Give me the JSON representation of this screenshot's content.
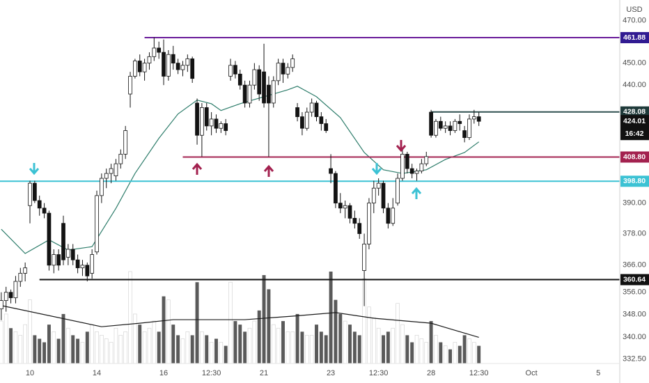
{
  "chart_data": {
    "type": "candlestick",
    "currency": "USD",
    "log_scale": true,
    "ylim": [
      331,
      480
    ],
    "yticks": [
      {
        "value": 470,
        "label": "470.00"
      },
      {
        "value": 450,
        "label": "450.00"
      },
      {
        "value": 440,
        "label": "440.00"
      },
      {
        "value": 390,
        "label": "390.00"
      },
      {
        "value": 378,
        "label": "378.00"
      },
      {
        "value": 366,
        "label": "366.00"
      },
      {
        "value": 356,
        "label": "356.00"
      },
      {
        "value": 348,
        "label": "348.00"
      },
      {
        "value": 340,
        "label": "340.00"
      },
      {
        "value": 332.5,
        "label": "332.50"
      }
    ],
    "xlim": [
      -0.27,
      129.5
    ],
    "xticks": [
      {
        "value": 6,
        "label": "10"
      },
      {
        "value": 20,
        "label": "14"
      },
      {
        "value": 34,
        "label": "16"
      },
      {
        "value": 44,
        "label": "12:30"
      },
      {
        "value": 55,
        "label": "21"
      },
      {
        "value": 69,
        "label": "23"
      },
      {
        "value": 79,
        "label": "12:30"
      },
      {
        "value": 90,
        "label": "28"
      },
      {
        "value": 100,
        "label": "12:30"
      },
      {
        "value": 111,
        "label": "Oct"
      },
      {
        "value": 125,
        "label": "5"
      }
    ],
    "up_color": "#ffffff",
    "down_color": "#131313",
    "candles": {
      "x": [
        0,
        1,
        2,
        3,
        4,
        5,
        6,
        7,
        8,
        9,
        10,
        11,
        12,
        13,
        14,
        15,
        16,
        17,
        18,
        19,
        20,
        21,
        22,
        23,
        24,
        25,
        26,
        27,
        28,
        29,
        30,
        31,
        32,
        33,
        34,
        35,
        36,
        37,
        38,
        39,
        40,
        41,
        42,
        43,
        44,
        45,
        46,
        47,
        48,
        49,
        50,
        51,
        52,
        53,
        54,
        55,
        56,
        57,
        58,
        59,
        60,
        61,
        62,
        63,
        64,
        65,
        66,
        67,
        68,
        69,
        70,
        71,
        72,
        73,
        74,
        75,
        76,
        77,
        78,
        79,
        80,
        81,
        82,
        83,
        84,
        85,
        86,
        87,
        88,
        89,
        90,
        91,
        92,
        93,
        94,
        95,
        96,
        97,
        98,
        99,
        100
      ],
      "open": [
        350,
        353,
        356,
        354,
        360,
        363,
        389,
        398,
        391,
        388,
        386,
        366,
        370,
        382,
        369,
        372,
        368,
        365,
        366,
        363,
        371,
        393,
        400,
        402,
        401,
        406,
        410,
        436,
        444,
        451,
        446,
        450,
        453,
        457,
        455,
        444,
        454,
        450,
        447,
        449,
        452,
        432,
        418,
        430,
        422,
        425,
        421,
        423,
        444,
        449,
        445,
        440,
        432,
        440,
        447,
        446,
        440,
        432,
        442,
        450,
        445,
        448,
        430,
        426,
        421,
        428,
        432,
        426,
        423,
        404,
        402,
        390,
        388,
        389,
        384,
        382,
        364,
        374,
        390,
        396,
        398,
        388,
        382,
        390,
        400,
        410,
        404,
        402,
        403,
        406,
        428,
        418,
        424,
        421,
        422,
        420,
        424,
        420,
        417,
        425,
        426
      ],
      "high": [
        356,
        358,
        357,
        362,
        365,
        367,
        399,
        399,
        393,
        390,
        387,
        372,
        372,
        385,
        374,
        374,
        370,
        368,
        367,
        372,
        395,
        402,
        404,
        406,
        408,
        412,
        422,
        446,
        452,
        454,
        452,
        455,
        462,
        460,
        461,
        456,
        458,
        452,
        451,
        454,
        453,
        434,
        432,
        432,
        428,
        427,
        424,
        425,
        452,
        451,
        447,
        442,
        442,
        450,
        449,
        459,
        444,
        444,
        452,
        452,
        450,
        454,
        432,
        428,
        430,
        434,
        433,
        428,
        425,
        410,
        403,
        394,
        391,
        390,
        387,
        384,
        378,
        392,
        399,
        400,
        399,
        390,
        392,
        402,
        412,
        411,
        406,
        404,
        408,
        411,
        429,
        425,
        426,
        424,
        424,
        425,
        427,
        422,
        427,
        429,
        428
      ],
      "low": [
        346,
        349,
        352,
        352,
        358,
        360,
        382,
        390,
        385,
        384,
        364,
        363,
        364,
        366,
        366,
        366,
        363,
        362,
        360,
        361,
        370,
        390,
        396,
        398,
        399,
        404,
        408,
        430,
        443,
        444,
        442,
        447,
        451,
        452,
        440,
        442,
        447,
        445,
        444,
        446,
        441,
        414,
        409,
        420,
        418,
        419,
        419,
        418,
        442,
        443,
        438,
        430,
        430,
        438,
        433,
        430,
        409,
        430,
        440,
        441,
        443,
        446,
        424,
        418,
        420,
        426,
        424,
        420,
        419,
        398,
        388,
        386,
        384,
        382,
        380,
        376,
        351,
        372,
        386,
        393,
        386,
        380,
        381,
        389,
        399,
        402,
        400,
        399,
        402,
        405,
        417,
        417,
        420,
        419,
        418,
        419,
        420,
        415,
        416,
        423,
        422
      ],
      "close": [
        353,
        356,
        354,
        360,
        363,
        365,
        398,
        391,
        388,
        386,
        366,
        370,
        366,
        368,
        372,
        368,
        365,
        366,
        362,
        370,
        393,
        400,
        402,
        404,
        406,
        410,
        420,
        444,
        451,
        446,
        450,
        453,
        457,
        455,
        444,
        454,
        450,
        447,
        449,
        452,
        443,
        418,
        430,
        422,
        425,
        421,
        423,
        420,
        449,
        445,
        440,
        432,
        440,
        447,
        436,
        432,
        432,
        442,
        450,
        445,
        448,
        452,
        426,
        421,
        428,
        432,
        426,
        423,
        420,
        402,
        390,
        388,
        389,
        384,
        382,
        378,
        374,
        390,
        396,
        398,
        388,
        382,
        388,
        400,
        410,
        404,
        402,
        403,
        406,
        409,
        418,
        424,
        421,
        422,
        420,
        424,
        423,
        417,
        425,
        426,
        424.01
      ]
    },
    "ma": {
      "color": "#2e7d6b",
      "x": [
        0,
        5,
        10,
        14,
        19,
        24,
        28,
        33,
        37,
        41,
        44,
        46,
        50,
        55,
        60,
        62,
        66,
        71,
        76,
        80,
        84,
        89,
        93,
        97,
        100
      ],
      "values": [
        379.7,
        370.4,
        375.6,
        371.7,
        373.0,
        387.9,
        402.0,
        416.7,
        427.2,
        433.3,
        431.7,
        428.7,
        431.7,
        434.8,
        437.9,
        439.5,
        434.8,
        425.6,
        410.7,
        403.5,
        402.0,
        403.5,
        407.8,
        410.7,
        415.2
      ]
    },
    "volume": {
      "vlim": [
        0,
        130
      ],
      "up_color": "#ffffff",
      "down_color": "#5a5a5a",
      "values": [
        60,
        70,
        50,
        45,
        40,
        55,
        90,
        40,
        35,
        30,
        55,
        45,
        35,
        70,
        50,
        40,
        35,
        30,
        45,
        55,
        45,
        40,
        35,
        30,
        50,
        40,
        45,
        130,
        70,
        55,
        45,
        50,
        60,
        45,
        95,
        90,
        55,
        40,
        35,
        45,
        40,
        115,
        45,
        40,
        30,
        35,
        30,
        25,
        115,
        60,
        55,
        45,
        50,
        60,
        75,
        125,
        105,
        55,
        50,
        60,
        45,
        45,
        70,
        45,
        40,
        40,
        55,
        45,
        40,
        130,
        90,
        70,
        60,
        55,
        45,
        40,
        120,
        80,
        65,
        50,
        40,
        45,
        50,
        85,
        55,
        40,
        30,
        40,
        35,
        30,
        60,
        40,
        30,
        25,
        20,
        30,
        25,
        40,
        35,
        30,
        25
      ]
    },
    "volume_ma": {
      "color": "#1a1a1a",
      "x": [
        0,
        21,
        29,
        36,
        51,
        61,
        70,
        78,
        90,
        100
      ],
      "values": [
        82,
        52,
        57,
        62,
        62,
        67,
        72,
        64,
        57,
        37
      ]
    },
    "levels": [
      {
        "value": 461.88,
        "color": "#6a1b9a",
        "box_color": "#311b92",
        "from": 30
      },
      {
        "value": 428.08,
        "color": "#2f4f4f",
        "box_color": "#1f3a3a",
        "from": 90
      },
      {
        "value": 408.8,
        "label": "408.80",
        "color": "#a3214f",
        "box_color": "#a3214f",
        "from": 38
      },
      {
        "value": 398.8,
        "label": "398.80",
        "color": "#3cc2d4",
        "box_color": "#3cc2d4",
        "from": -0.27
      },
      {
        "value": 360.64,
        "color": "#111111",
        "box_color": "#111111",
        "from": 8
      }
    ],
    "last_price": {
      "value": 424.01,
      "countdown": "16:42",
      "box_color": "#111111"
    }
  }
}
